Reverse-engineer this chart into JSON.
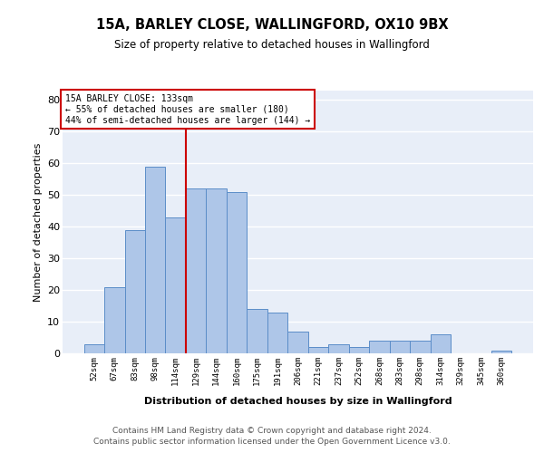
{
  "title": "15A, BARLEY CLOSE, WALLINGFORD, OX10 9BX",
  "subtitle": "Size of property relative to detached houses in Wallingford",
  "xlabel": "Distribution of detached houses by size in Wallingford",
  "ylabel": "Number of detached properties",
  "categories": [
    "52sqm",
    "67sqm",
    "83sqm",
    "98sqm",
    "114sqm",
    "129sqm",
    "144sqm",
    "160sqm",
    "175sqm",
    "191sqm",
    "206sqm",
    "221sqm",
    "237sqm",
    "252sqm",
    "268sqm",
    "283sqm",
    "298sqm",
    "314sqm",
    "329sqm",
    "345sqm",
    "360sqm"
  ],
  "values": [
    3,
    21,
    39,
    59,
    43,
    52,
    52,
    51,
    14,
    13,
    7,
    2,
    3,
    2,
    4,
    4,
    4,
    6,
    0,
    0,
    1
  ],
  "bar_color": "#aec6e8",
  "bar_edge_color": "#5b8dc8",
  "background_color": "#e8eef8",
  "grid_color": "#ffffff",
  "annotation_text_line1": "15A BARLEY CLOSE: 133sqm",
  "annotation_text_line2": "← 55% of detached houses are smaller (180)",
  "annotation_text_line3": "44% of semi-detached houses are larger (144) →",
  "annotation_box_color": "#ffffff",
  "annotation_box_edge_color": "#cc0000",
  "vline_color": "#cc0000",
  "ylim": [
    0,
    83
  ],
  "yticks": [
    0,
    10,
    20,
    30,
    40,
    50,
    60,
    70,
    80
  ],
  "footer_line1": "Contains HM Land Registry data © Crown copyright and database right 2024.",
  "footer_line2": "Contains public sector information licensed under the Open Government Licence v3.0."
}
